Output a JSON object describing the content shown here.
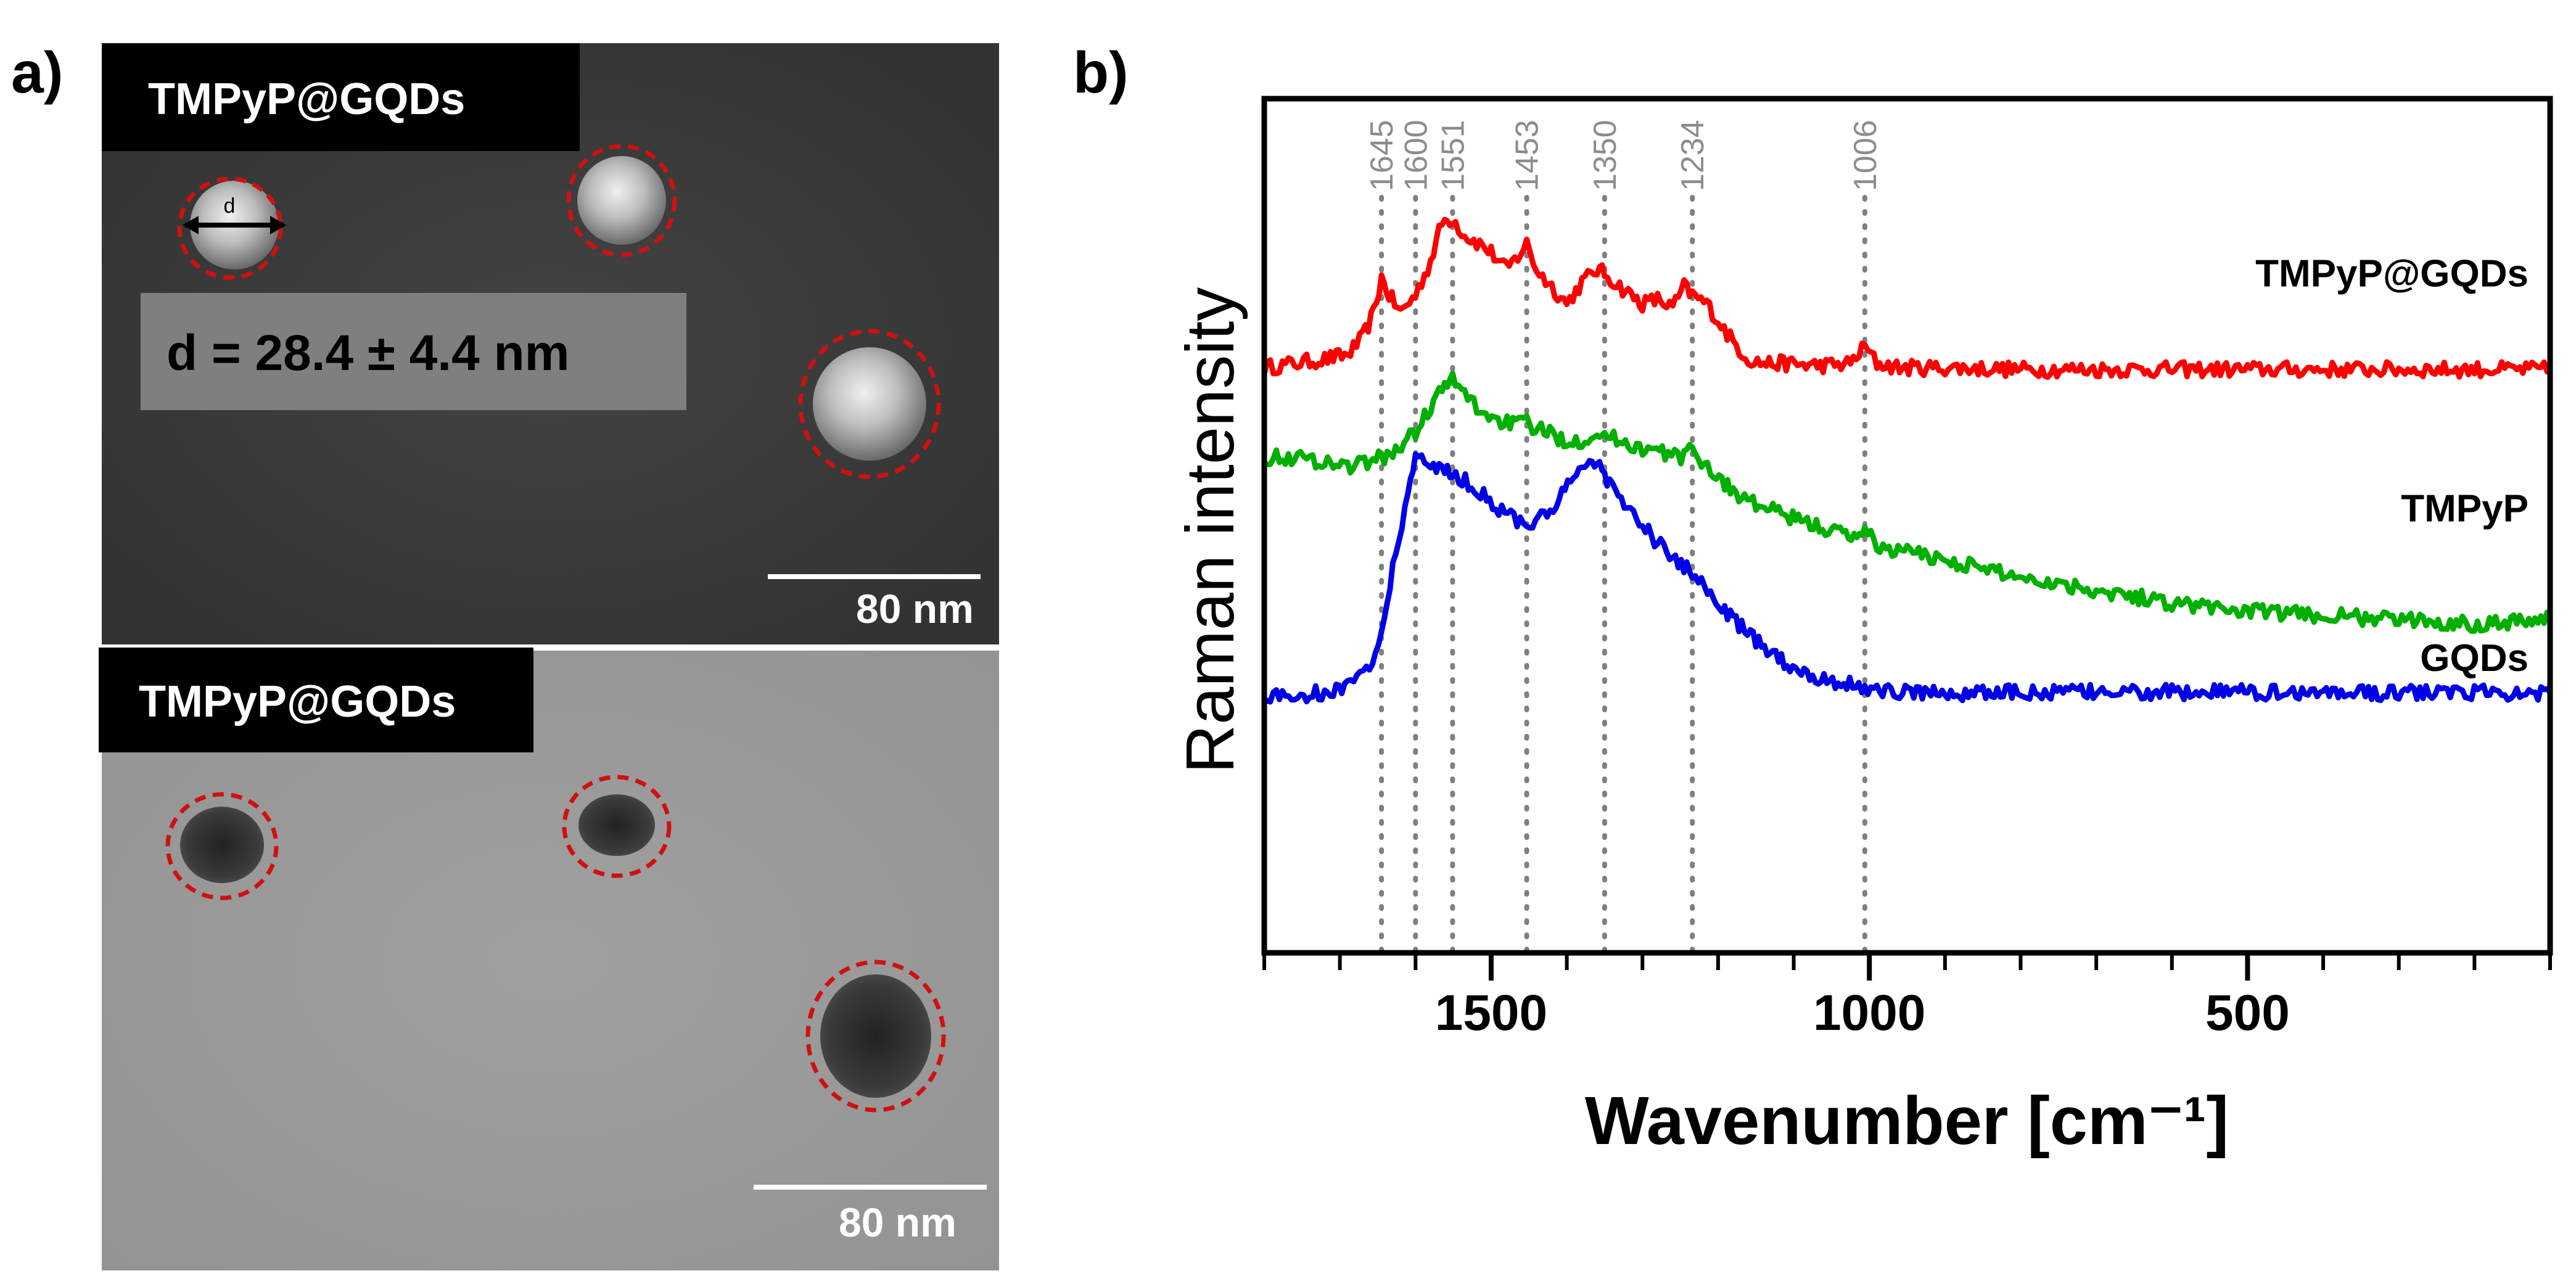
{
  "panel_a": {
    "label": "a)",
    "sem": {
      "tag": "TMPyP@GQDs",
      "measurement": "d = 28.4 ± 4.4 nm",
      "diameter_marker": "d",
      "scale_bar": "80 nm"
    },
    "tem": {
      "tag": "TMPyP@GQDs",
      "scale_bar": "80 nm"
    }
  },
  "panel_b": {
    "label": "b)"
  },
  "chart_data": {
    "type": "line",
    "xlabel": "Wavenumber [cm⁻¹]",
    "ylabel": "Raman intensity",
    "xlim": [
      1800,
      100
    ],
    "x_reversed": true,
    "ylim": [
      0,
      1
    ],
    "x_ticks_major": [
      1500,
      1000,
      500
    ],
    "x_ticks_minor_step": 100,
    "reference_lines": [
      1645,
      1600,
      1551,
      1453,
      1350,
      1234,
      1006
    ],
    "reference_labels": [
      "1645",
      "1600",
      "1551",
      "1453",
      "1350",
      "1234",
      "1006"
    ],
    "colors": {
      "TMPyP@GQDs": "#ff0000",
      "TMPyP": "#00b000",
      "GQDs": "#0000e6",
      "refline": "#808080",
      "reflabel": "#8c8c8c"
    },
    "series": [
      {
        "name": "TMPyP@GQDs",
        "x": [
          1800,
          1760,
          1720,
          1690,
          1670,
          1655,
          1645,
          1635,
          1620,
          1600,
          1580,
          1565,
          1551,
          1535,
          1515,
          1500,
          1480,
          1465,
          1453,
          1440,
          1420,
          1400,
          1380,
          1360,
          1350,
          1330,
          1300,
          1280,
          1260,
          1245,
          1234,
          1215,
          1200,
          1180,
          1160,
          1140,
          1110,
          1080,
          1050,
          1025,
          1006,
          990,
          960,
          900,
          800,
          700,
          600,
          500,
          400,
          300,
          200,
          100
        ],
        "values": [
          0.685,
          0.69,
          0.695,
          0.7,
          0.72,
          0.75,
          0.79,
          0.77,
          0.75,
          0.77,
          0.81,
          0.855,
          0.86,
          0.84,
          0.83,
          0.82,
          0.8,
          0.815,
          0.83,
          0.8,
          0.78,
          0.76,
          0.785,
          0.8,
          0.795,
          0.78,
          0.76,
          0.765,
          0.755,
          0.78,
          0.77,
          0.76,
          0.74,
          0.715,
          0.695,
          0.69,
          0.69,
          0.688,
          0.688,
          0.69,
          0.71,
          0.69,
          0.685,
          0.685,
          0.683,
          0.683,
          0.683,
          0.683,
          0.683,
          0.683,
          0.683,
          0.683
        ]
      },
      {
        "name": "TMPyP",
        "x": [
          1800,
          1760,
          1720,
          1690,
          1660,
          1630,
          1600,
          1580,
          1565,
          1551,
          1535,
          1515,
          1495,
          1475,
          1453,
          1430,
          1400,
          1380,
          1360,
          1350,
          1330,
          1300,
          1270,
          1245,
          1234,
          1210,
          1180,
          1150,
          1120,
          1090,
          1050,
          1020,
          1006,
          990,
          950,
          900,
          800,
          700,
          600,
          500,
          400,
          300,
          200,
          100
        ],
        "values": [
          0.58,
          0.58,
          0.575,
          0.57,
          0.575,
          0.585,
          0.61,
          0.64,
          0.66,
          0.67,
          0.655,
          0.635,
          0.625,
          0.62,
          0.62,
          0.61,
          0.6,
          0.6,
          0.61,
          0.605,
          0.6,
          0.59,
          0.585,
          0.58,
          0.59,
          0.565,
          0.54,
          0.525,
          0.515,
          0.505,
          0.495,
          0.485,
          0.5,
          0.475,
          0.47,
          0.46,
          0.44,
          0.425,
          0.41,
          0.4,
          0.395,
          0.39,
          0.385,
          0.392
        ]
      },
      {
        "name": "GQDs",
        "x": [
          1800,
          1760,
          1720,
          1690,
          1665,
          1645,
          1630,
          1610,
          1600,
          1580,
          1565,
          1551,
          1530,
          1510,
          1490,
          1470,
          1453,
          1430,
          1410,
          1395,
          1380,
          1370,
          1360,
          1350,
          1340,
          1320,
          1300,
          1280,
          1260,
          1234,
          1210,
          1180,
          1150,
          1120,
          1090,
          1060,
          1030,
          1010,
          990,
          960,
          930,
          900,
          850,
          800,
          700,
          600,
          500,
          400,
          300,
          200,
          100
        ],
        "values": [
          0.3,
          0.3,
          0.305,
          0.31,
          0.33,
          0.37,
          0.45,
          0.54,
          0.575,
          0.575,
          0.565,
          0.56,
          0.55,
          0.535,
          0.52,
          0.51,
          0.5,
          0.51,
          0.53,
          0.55,
          0.57,
          0.575,
          0.575,
          0.56,
          0.545,
          0.52,
          0.5,
          0.48,
          0.46,
          0.445,
          0.42,
          0.39,
          0.365,
          0.345,
          0.33,
          0.32,
          0.315,
          0.31,
          0.308,
          0.305,
          0.305,
          0.304,
          0.304,
          0.305,
          0.305,
          0.305,
          0.305,
          0.305,
          0.304,
          0.305,
          0.305
        ]
      }
    ]
  }
}
